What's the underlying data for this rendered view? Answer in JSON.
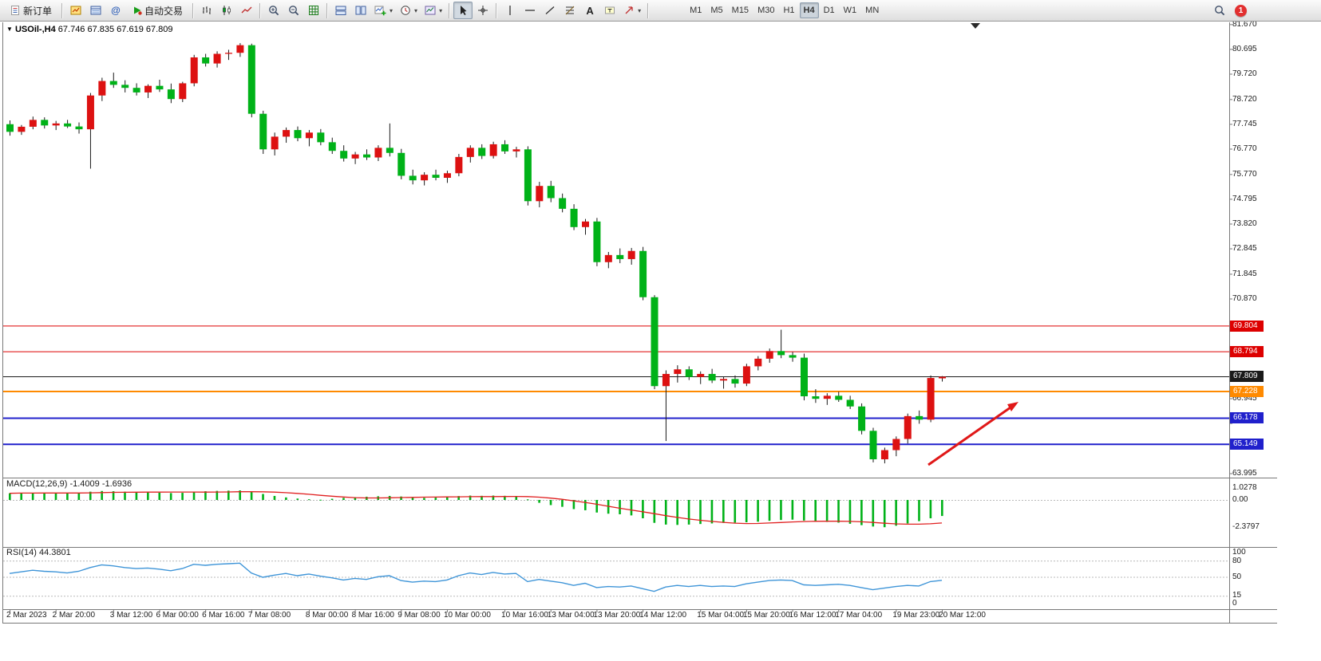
{
  "toolbar": {
    "new_order_label": "新订单",
    "autotrading_label": "自动交易",
    "timeframes": [
      "M1",
      "M5",
      "M15",
      "M30",
      "H1",
      "H4",
      "D1",
      "W1",
      "MN"
    ],
    "active_timeframe": "H4",
    "notification_count": "1"
  },
  "chart": {
    "symbol_label": "USOil-,H4",
    "ohlc_label": "67.746 67.835 67.619 67.809",
    "price_axis_labels": [
      "81.670",
      "80.695",
      "79.720",
      "78.720",
      "77.745",
      "76.770",
      "75.770",
      "74.795",
      "73.820",
      "72.845",
      "71.845",
      "70.870",
      "69.895",
      "68.920",
      "67.920",
      "66.945",
      "65.970",
      "64.970",
      "63.995"
    ],
    "price_lines": [
      {
        "price": 69.804,
        "label": "69.804",
        "color": "#dd0000",
        "width": 1
      },
      {
        "price": 68.794,
        "label": "68.794",
        "color": "#dd0000",
        "width": 1
      },
      {
        "price": 67.809,
        "label": "67.809",
        "color": "#1a1a1a",
        "width": 1
      },
      {
        "price": 67.228,
        "label": "67.228",
        "color": "#ff8a00",
        "width": 2
      },
      {
        "price": 66.178,
        "label": "66.178",
        "color": "#2020cc",
        "width": 2
      },
      {
        "price": 65.149,
        "label": "65.149",
        "color": "#2020cc",
        "width": 2
      }
    ],
    "time_axis_labels": [
      "2 Mar 2023",
      "2 Mar 20:00",
      "3 Mar 12:00",
      "6 Mar 00:00",
      "6 Mar 16:00",
      "7 Mar 08:00",
      "8 Mar 00:00",
      "8 Mar 16:00",
      "9 Mar 08:00",
      "10 Mar 00:00",
      "10 Mar 16:00",
      "13 Mar 04:00",
      "13 Mar 20:00",
      "14 Mar 12:00",
      "15 Mar 04:00",
      "15 Mar 20:00",
      "16 Mar 12:00",
      "17 Mar 04:00",
      "19 Mar 23:00",
      "20 Mar 12:00"
    ]
  },
  "chart_data": {
    "type": "candlestick",
    "symbol": "USOil-",
    "timeframe": "H4",
    "current_ohlc": {
      "open": "67.746",
      "high": "67.835",
      "low": "67.619",
      "close": "67.809"
    },
    "price_range": [
      63.87,
      81.76
    ],
    "up_color": "#dd1111",
    "down_color": "#00b218",
    "ohlc": [
      [
        77.75,
        77.9,
        77.3,
        77.45
      ],
      [
        77.45,
        77.72,
        77.33,
        77.65
      ],
      [
        77.65,
        78.05,
        77.55,
        77.92
      ],
      [
        77.92,
        78.02,
        77.58,
        77.7
      ],
      [
        77.7,
        77.88,
        77.52,
        77.78
      ],
      [
        77.78,
        77.92,
        77.6,
        77.66
      ],
      [
        77.66,
        77.82,
        77.38,
        77.55
      ],
      [
        77.55,
        78.98,
        76.0,
        78.88
      ],
      [
        78.88,
        79.58,
        78.66,
        79.45
      ],
      [
        79.45,
        79.78,
        79.18,
        79.3
      ],
      [
        79.3,
        79.48,
        79.0,
        79.18
      ],
      [
        79.18,
        79.36,
        78.88,
        79.0
      ],
      [
        79.0,
        79.32,
        78.78,
        79.26
      ],
      [
        79.26,
        79.5,
        79.02,
        79.12
      ],
      [
        79.12,
        79.35,
        78.58,
        78.74
      ],
      [
        78.74,
        79.42,
        78.62,
        79.36
      ],
      [
        79.36,
        80.48,
        79.24,
        80.38
      ],
      [
        80.38,
        80.52,
        80.02,
        80.14
      ],
      [
        80.14,
        80.62,
        79.98,
        80.52
      ],
      [
        80.52,
        80.68,
        80.28,
        80.56
      ],
      [
        80.56,
        80.94,
        80.4,
        80.86
      ],
      [
        80.86,
        80.92,
        78.02,
        78.16
      ],
      [
        78.16,
        78.28,
        76.58,
        76.76
      ],
      [
        76.76,
        77.42,
        76.52,
        77.26
      ],
      [
        77.26,
        77.62,
        77.02,
        77.52
      ],
      [
        77.52,
        77.66,
        77.08,
        77.2
      ],
      [
        77.2,
        77.52,
        76.88,
        77.42
      ],
      [
        77.42,
        77.56,
        76.92,
        77.04
      ],
      [
        77.04,
        77.22,
        76.58,
        76.7
      ],
      [
        76.7,
        76.92,
        76.28,
        76.4
      ],
      [
        76.4,
        76.66,
        76.18,
        76.56
      ],
      [
        76.56,
        76.76,
        76.34,
        76.44
      ],
      [
        76.44,
        76.92,
        76.3,
        76.82
      ],
      [
        76.82,
        77.78,
        76.48,
        76.62
      ],
      [
        76.62,
        76.78,
        75.58,
        75.72
      ],
      [
        75.72,
        75.96,
        75.38,
        75.54
      ],
      [
        75.54,
        75.86,
        75.34,
        75.76
      ],
      [
        75.76,
        75.96,
        75.54,
        75.64
      ],
      [
        75.64,
        75.92,
        75.44,
        75.82
      ],
      [
        75.82,
        76.58,
        75.7,
        76.46
      ],
      [
        76.46,
        76.92,
        76.24,
        76.82
      ],
      [
        76.82,
        76.96,
        76.38,
        76.5
      ],
      [
        76.5,
        77.06,
        76.4,
        76.96
      ],
      [
        76.96,
        77.12,
        76.58,
        76.68
      ],
      [
        76.68,
        76.86,
        76.44,
        76.76
      ],
      [
        76.76,
        76.88,
        74.55,
        74.72
      ],
      [
        74.72,
        75.48,
        74.48,
        75.32
      ],
      [
        75.32,
        75.52,
        74.68,
        74.84
      ],
      [
        74.84,
        75.02,
        74.28,
        74.42
      ],
      [
        74.42,
        74.6,
        73.58,
        73.7
      ],
      [
        73.7,
        74.02,
        73.4,
        73.92
      ],
      [
        73.92,
        74.06,
        72.16,
        72.32
      ],
      [
        72.32,
        72.72,
        72.08,
        72.6
      ],
      [
        72.6,
        72.86,
        72.28,
        72.44
      ],
      [
        72.44,
        72.88,
        72.22,
        72.76
      ],
      [
        72.76,
        72.92,
        70.82,
        70.94
      ],
      [
        70.94,
        71.02,
        67.32,
        67.44
      ],
      [
        67.44,
        68.06,
        65.28,
        67.92
      ],
      [
        67.92,
        68.26,
        67.58,
        68.1
      ],
      [
        68.1,
        68.22,
        67.68,
        67.8
      ],
      [
        67.8,
        68.02,
        67.52,
        67.92
      ],
      [
        67.92,
        68.12,
        67.56,
        67.66
      ],
      [
        67.66,
        67.82,
        67.34,
        67.72
      ],
      [
        67.72,
        67.86,
        67.38,
        67.54
      ],
      [
        67.54,
        68.32,
        67.44,
        68.22
      ],
      [
        68.22,
        68.62,
        68.06,
        68.52
      ],
      [
        68.52,
        68.92,
        68.36,
        68.82
      ],
      [
        68.82,
        69.66,
        68.54,
        68.66
      ],
      [
        68.66,
        68.78,
        68.4,
        68.56
      ],
      [
        68.56,
        68.72,
        66.88,
        67.04
      ],
      [
        67.04,
        67.32,
        66.78,
        66.94
      ],
      [
        66.94,
        67.16,
        66.7,
        67.06
      ],
      [
        67.06,
        67.22,
        66.82,
        66.9
      ],
      [
        66.9,
        67.06,
        66.54,
        66.64
      ],
      [
        66.64,
        66.76,
        65.54,
        65.68
      ],
      [
        65.68,
        65.8,
        64.44,
        64.56
      ],
      [
        64.56,
        65.02,
        64.4,
        64.92
      ],
      [
        64.92,
        65.46,
        64.68,
        65.36
      ],
      [
        65.36,
        66.36,
        65.18,
        66.26
      ],
      [
        66.26,
        66.48,
        65.96,
        66.12
      ],
      [
        66.12,
        67.86,
        66.02,
        67.76
      ],
      [
        67.746,
        67.835,
        67.619,
        67.809
      ]
    ],
    "macd": {
      "label": "MACD(12,26,9) -1.4009 -1.6936",
      "histogram_color": "#00b218",
      "signal_color": "#e02020",
      "axis": [
        "1.0278",
        "0.00",
        "-2.3797"
      ],
      "values": [
        0.58,
        0.62,
        0.6,
        0.63,
        0.61,
        0.58,
        0.62,
        0.72,
        0.78,
        0.76,
        0.72,
        0.68,
        0.66,
        0.63,
        0.6,
        0.62,
        0.72,
        0.76,
        0.79,
        0.81,
        0.83,
        0.72,
        0.52,
        0.35,
        0.22,
        0.12,
        0.06,
        0.02,
        0.1,
        0.18,
        0.24,
        0.28,
        0.32,
        0.35,
        0.3,
        0.22,
        0.18,
        0.2,
        0.28,
        0.34,
        0.38,
        0.36,
        0.38,
        0.36,
        0.28,
        0.05,
        -0.25,
        -0.45,
        -0.6,
        -0.8,
        -0.9,
        -1.1,
        -1.2,
        -1.25,
        -1.35,
        -1.6,
        -2.0,
        -2.15,
        -2.18,
        -2.15,
        -2.1,
        -2.05,
        -2.0,
        -1.98,
        -1.95,
        -1.9,
        -1.82,
        -1.75,
        -1.72,
        -1.8,
        -1.88,
        -1.92,
        -1.98,
        -2.08,
        -2.2,
        -2.32,
        -2.38,
        -2.25,
        -2.05,
        -1.85,
        -1.6,
        -1.4
      ]
    },
    "rsi": {
      "label": "RSI(14) 44.3801",
      "line_color": "#3f95d8",
      "axis": [
        "100",
        "80",
        "50",
        "15",
        "0"
      ],
      "levels": [
        80,
        50,
        15
      ],
      "values": [
        57,
        60,
        63,
        61,
        60,
        58,
        61,
        68,
        73,
        71,
        68,
        66,
        67,
        65,
        62,
        66,
        74,
        72,
        74,
        75,
        76,
        58,
        50,
        54,
        57,
        53,
        56,
        52,
        49,
        45,
        48,
        46,
        51,
        53,
        44,
        41,
        43,
        42,
        45,
        53,
        58,
        55,
        59,
        56,
        57,
        42,
        46,
        43,
        40,
        35,
        39,
        31,
        33,
        32,
        34,
        29,
        24,
        32,
        35,
        33,
        35,
        33,
        34,
        33,
        38,
        41,
        44,
        45,
        44,
        36,
        35,
        36,
        37,
        35,
        31,
        27,
        30,
        33,
        35,
        34,
        42,
        44.38
      ]
    }
  },
  "drawings": {
    "trend_arrow": {
      "color": "#e01818",
      "from": [
        1163,
        583
      ],
      "to": [
        1276,
        504
      ]
    }
  }
}
